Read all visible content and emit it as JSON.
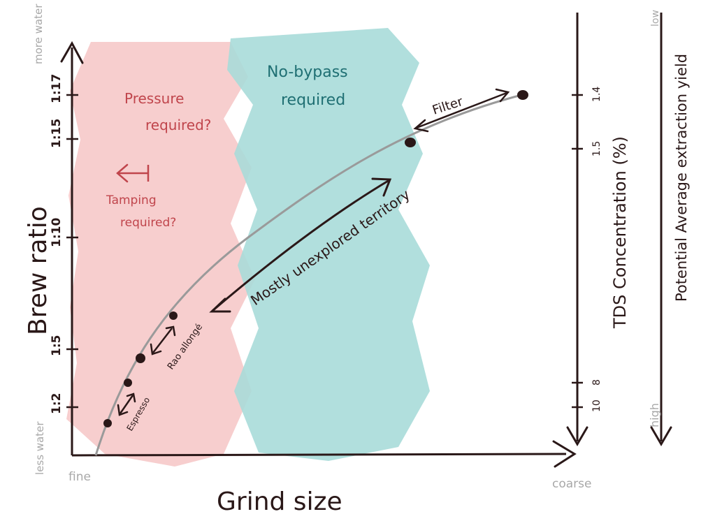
{
  "colors": {
    "ink": "#2a1818",
    "pink_region": "#f6c6c6",
    "teal_region": "#a9dbd9",
    "pink_text": "#c0454c",
    "teal_text": "#1f6f73",
    "curve": "#9a9a9a",
    "muted": "#a8a8a8"
  },
  "axes": {
    "x_label": "Grind size",
    "y_label": "Brew ratio",
    "x_low": "fine",
    "x_high": "coarse",
    "y_high": "more water",
    "y_low": "less water",
    "y_ticks": [
      "1:17",
      "1:15",
      "1:10",
      "1:5",
      "1:2"
    ]
  },
  "tds_axis": {
    "label": "TDS Concentration (%)",
    "ticks": [
      "1.4",
      "1.5",
      "8",
      "10"
    ]
  },
  "extraction_axis": {
    "label": "Potential Average extraction yield",
    "top": "low",
    "bottom": "high"
  },
  "regions": {
    "pressure": "Pressure required?",
    "tamping": "Tamping required?",
    "no_bypass": "No-bypass required"
  },
  "annotations": {
    "filter": "Filter",
    "unexplored": "Mostly unexplored territory",
    "espresso": "Espresso",
    "rao": "Rao allongé"
  }
}
